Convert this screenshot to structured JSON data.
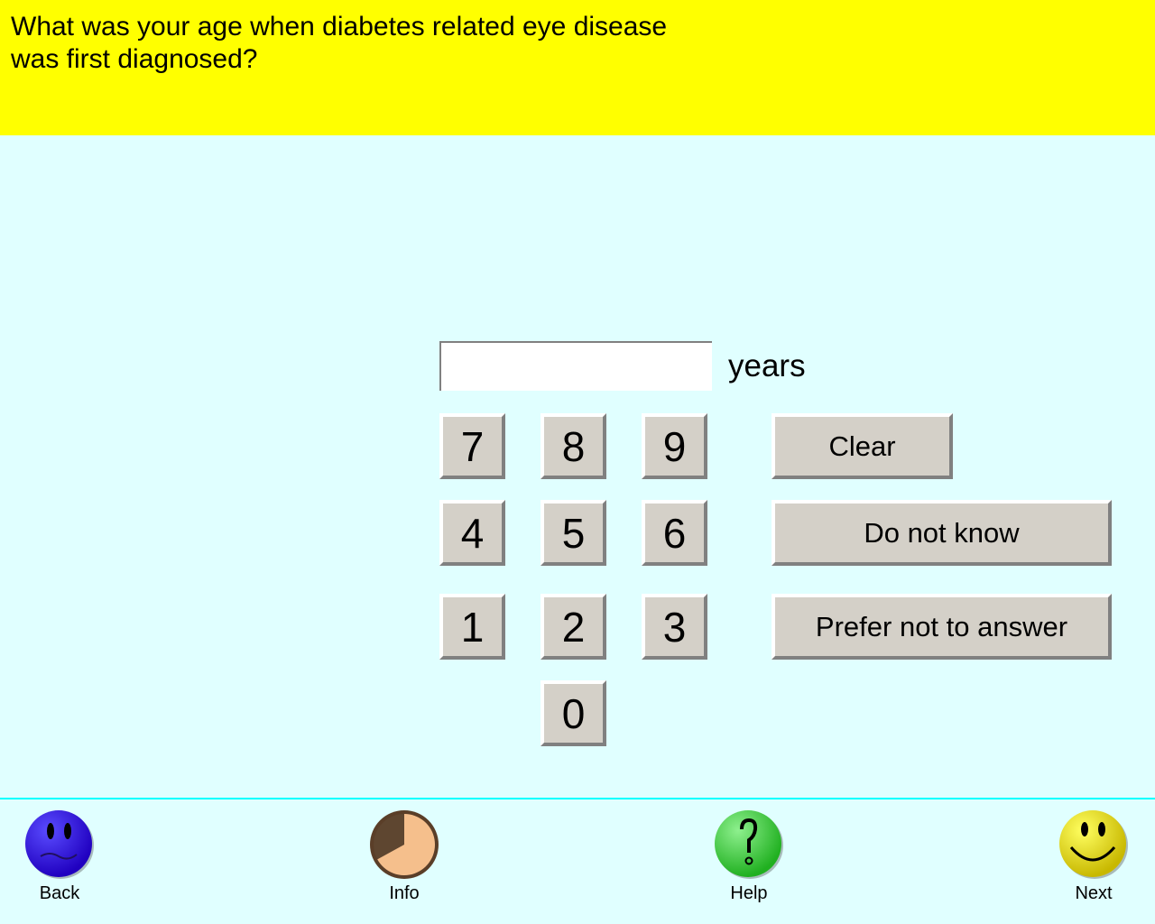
{
  "question": "What was your age when diabetes related eye disease was first diagnosed?",
  "input": {
    "value": "",
    "unit": "years"
  },
  "keypad": [
    "7",
    "8",
    "9",
    "4",
    "5",
    "6",
    "1",
    "2",
    "3",
    "0"
  ],
  "actions": {
    "clear": "Clear",
    "dont_know": "Do not know",
    "prefer_not": "Prefer not to answer"
  },
  "nav": {
    "back": "Back",
    "info": "Info",
    "help": "Help",
    "next": "Next"
  },
  "progress_fraction": 0.67,
  "colors": {
    "header": "#ffff00",
    "background": "#e0ffff",
    "button": "#d4d0c8"
  }
}
